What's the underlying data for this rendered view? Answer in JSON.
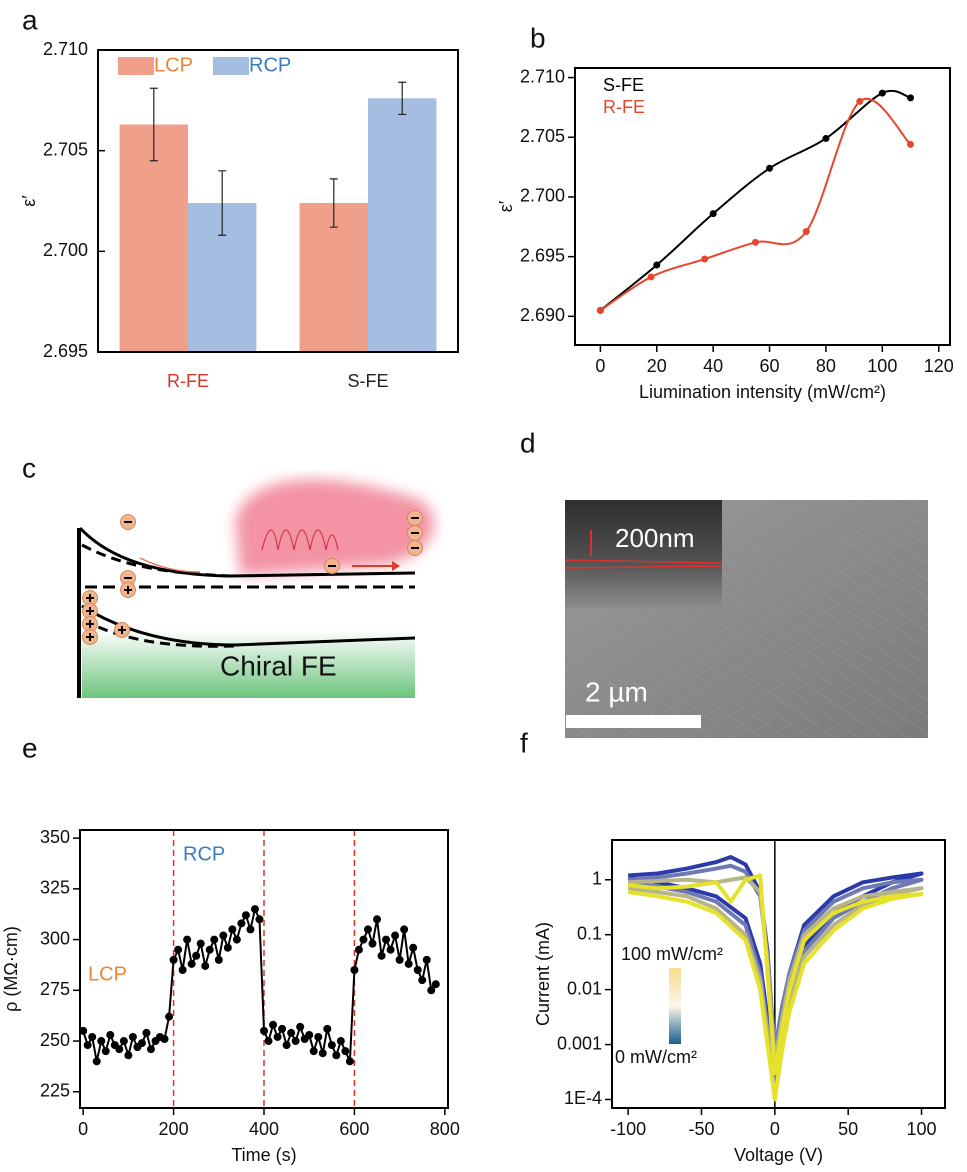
{
  "panel_labels": [
    "a",
    "b",
    "c",
    "d",
    "e",
    "f"
  ],
  "diagram_c": {
    "text": "Chiral FE"
  },
  "image_d": {
    "inset_scale": "200nm",
    "scale_bar": "2 µm"
  },
  "chart_data": [
    {
      "type": "bar",
      "ylabel": "ε′",
      "categories": [
        "R-FE",
        "S-FE"
      ],
      "category_colors": [
        "#d9342b",
        "#222222"
      ],
      "series": [
        {
          "name": "LCP",
          "color": "#f0a08a",
          "name_color": "#e8843a",
          "values": [
            2.7063,
            2.7024
          ],
          "errors": [
            0.0018,
            0.0012
          ]
        },
        {
          "name": "RCP",
          "color": "#a5bde0",
          "name_color": "#3a7cc4",
          "values": [
            2.7024,
            2.7076
          ],
          "errors": [
            0.0016,
            0.0008
          ]
        }
      ],
      "ylim": [
        2.695,
        2.71
      ],
      "yticks": [
        2.695,
        {
          "value": 2.7,
          "label": "2.700"
        },
        2.705,
        {
          "value": 2.71,
          "label": "2.710"
        }
      ],
      "legend": "upper left"
    },
    {
      "type": "line",
      "smooth": true,
      "markers": true,
      "xlabel": "Liumination intensity (mW/cm²)",
      "ylabel": "ε′",
      "series": [
        {
          "name": "S-FE",
          "color": "#000000",
          "x": [
            0,
            20,
            40,
            60,
            80,
            100,
            110
          ],
          "values": [
            2.6905,
            2.6943,
            2.6986,
            2.7024,
            2.7049,
            2.7087,
            2.7083
          ]
        },
        {
          "name": "R-FE",
          "color": "#e8452c",
          "x": [
            0,
            18,
            37,
            55,
            73,
            92,
            110
          ],
          "values": [
            2.6905,
            2.6933,
            2.6948,
            2.6962,
            2.6971,
            2.708,
            2.7044
          ]
        }
      ],
      "xlim": [
        -9,
        124
      ],
      "xticks": [
        0,
        20,
        40,
        60,
        80,
        100,
        120
      ],
      "ylim": [
        2.6876,
        2.7108
      ],
      "yticks": [
        {
          "value": 2.69,
          "label": "2.690"
        },
        2.695,
        {
          "value": 2.7,
          "label": "2.700"
        },
        2.705,
        {
          "value": 2.71,
          "label": "2.710"
        }
      ],
      "legend": "upper left"
    },
    {
      "type": "line",
      "markers": true,
      "xlabel": "Time (s)",
      "ylabel": "ρ (MΩ·cm)",
      "x": [
        0,
        10,
        20,
        30,
        40,
        50,
        60,
        70,
        80,
        90,
        100,
        110,
        120,
        130,
        140,
        150,
        160,
        170,
        180,
        190,
        200,
        210,
        220,
        230,
        240,
        250,
        260,
        270,
        280,
        290,
        300,
        310,
        320,
        330,
        340,
        350,
        360,
        370,
        380,
        390,
        400,
        410,
        420,
        430,
        440,
        450,
        460,
        470,
        480,
        490,
        500,
        510,
        520,
        530,
        540,
        550,
        560,
        570,
        580,
        590,
        600,
        610,
        620,
        630,
        640,
        650,
        660,
        670,
        680,
        690,
        700,
        710,
        720,
        730,
        740,
        750,
        760,
        770,
        780
      ],
      "series": [
        {
          "color": "#000000",
          "values": [
            255,
            248,
            252,
            240,
            250,
            245,
            253,
            248,
            246,
            250,
            243,
            252,
            247,
            249,
            254,
            246,
            250,
            252,
            251,
            262,
            290,
            295,
            285,
            300,
            288,
            292,
            298,
            287,
            295,
            300,
            290,
            302,
            296,
            305,
            300,
            308,
            312,
            305,
            315,
            310,
            255,
            250,
            258,
            252,
            256,
            248,
            254,
            250,
            257,
            251,
            253,
            245,
            252,
            244,
            256,
            248,
            243,
            250,
            245,
            240,
            285,
            295,
            300,
            305,
            298,
            310,
            292,
            300,
            295,
            302,
            290,
            305,
            288,
            296,
            285,
            280,
            290,
            275,
            278
          ]
        }
      ],
      "vlines": [
        200,
        400,
        600
      ],
      "vline_color": "#e0302a",
      "annotations": [
        {
          "text": "LCP",
          "color": "#e8843a"
        },
        {
          "text": "RCP",
          "color": "#3a7cc4"
        }
      ],
      "xlim": [
        -7,
        807
      ],
      "xticks": [
        0,
        200,
        400,
        600,
        800
      ],
      "ylim": [
        217,
        354
      ],
      "yticks": [
        225,
        250,
        275,
        300,
        325,
        350
      ]
    },
    {
      "type": "line",
      "log_y": true,
      "xlabel": "Voltage (V)",
      "ylabel": "Current (mA)",
      "x": [
        -100,
        -80,
        -60,
        -40,
        -30,
        -20,
        -10,
        -5,
        0,
        5,
        10,
        20,
        40,
        60,
        80,
        100,
        80,
        60,
        40,
        20,
        10,
        5,
        0,
        -5,
        -10,
        -20,
        -40,
        -60,
        -80,
        -100
      ],
      "series": [
        {
          "color": "#2a3aa8",
          "values": [
            1.2,
            1.3,
            1.6,
            2.1,
            2.6,
            1.9,
            0.6,
            0.05,
            0.0006,
            0.004,
            0.02,
            0.15,
            0.5,
            0.9,
            1.1,
            1.3,
            0.9,
            0.5,
            0.25,
            0.06,
            0.01,
            0.002,
            0.0002,
            0.003,
            0.03,
            0.2,
            0.5,
            0.7,
            0.9,
            1.1
          ]
        },
        {
          "color": "#6f79b3",
          "values": [
            1.0,
            1.1,
            1.3,
            1.6,
            1.8,
            1.4,
            0.5,
            0.04,
            0.0008,
            0.005,
            0.02,
            0.12,
            0.4,
            0.7,
            0.9,
            1.0,
            0.7,
            0.4,
            0.2,
            0.05,
            0.008,
            0.0015,
            0.00015,
            0.002,
            0.02,
            0.15,
            0.4,
            0.6,
            0.75,
            0.9
          ]
        },
        {
          "color": "#b7b48a",
          "values": [
            0.9,
            0.95,
            1.0,
            0.9,
            1.0,
            1.1,
            0.6,
            0.03,
            0.0005,
            0.003,
            0.015,
            0.1,
            0.3,
            0.5,
            0.6,
            0.7,
            0.55,
            0.35,
            0.15,
            0.04,
            0.006,
            0.001,
            0.0001,
            0.0015,
            0.015,
            0.1,
            0.3,
            0.5,
            0.6,
            0.7
          ]
        },
        {
          "color": "#e6e22c",
          "values": [
            0.8,
            0.7,
            0.75,
            0.9,
            0.4,
            1.0,
            1.2,
            0.02,
            0.0003,
            0.002,
            0.01,
            0.08,
            0.25,
            0.4,
            0.5,
            0.55,
            0.45,
            0.3,
            0.12,
            0.03,
            0.004,
            0.0008,
            0.0001,
            0.001,
            0.01,
            0.08,
            0.25,
            0.4,
            0.5,
            0.6
          ]
        }
      ],
      "vlines": [
        0
      ],
      "vline_color": "#000000",
      "colorbar_labels": [
        "100 mW/cm²",
        "0 mW/cm²"
      ],
      "colorbar_colors": [
        "#f6dc8e",
        "#fbf7ea",
        "#1b5e8c"
      ],
      "xlim": [
        -111,
        116
      ],
      "xticks": [
        -100,
        -50,
        0,
        50,
        100
      ],
      "ylim": [
        7e-05,
        5.3
      ],
      "yticks": [
        {
          "value": 0.0001,
          "label": "1E-4"
        },
        0.001,
        0.01,
        0.1,
        1
      ]
    }
  ]
}
